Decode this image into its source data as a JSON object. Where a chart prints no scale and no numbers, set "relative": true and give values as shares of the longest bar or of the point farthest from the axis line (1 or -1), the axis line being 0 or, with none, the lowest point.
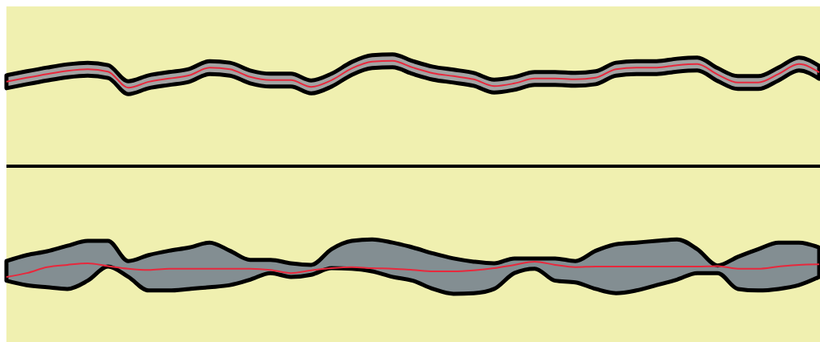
{
  "chart_data": [
    {
      "type": "line",
      "relative": true,
      "categories": [
        null,
        null,
        null,
        null,
        null,
        null,
        null,
        null,
        null,
        null,
        null,
        null,
        null,
        null,
        null,
        null,
        null,
        null,
        null,
        null,
        null,
        null,
        null,
        null,
        null,
        null,
        null,
        null,
        null,
        null,
        null,
        null,
        null,
        null,
        null,
        null,
        null,
        null,
        null,
        null,
        null
      ],
      "series": [
        {
          "color": "#e8283c",
          "values": [
            0.22,
            0.37,
            0.51,
            0.63,
            0.69,
            0.6,
            0,
            0.22,
            0.34,
            0.46,
            0.75,
            0.69,
            0.4,
            0.28,
            0.28,
            0.03,
            0.28,
            0.72,
            0.97,
            1,
            0.75,
            0.54,
            0.43,
            0.31,
            0.06,
            0.16,
            0.34,
            0.34,
            0.31,
            0.37,
            0.69,
            0.75,
            0.75,
            0.84,
            0.88,
            0.49,
            0.19,
            0.19,
            0.51,
            0.88,
            0.57
          ],
          "lower": [
            -0.02,
            0.13,
            0.27,
            0.39,
            0.45,
            0.36,
            -0.24,
            -0.02,
            0.1,
            0.22,
            0.51,
            0.45,
            0.16,
            0.04,
            0.04,
            -0.21,
            0.04,
            0.48,
            0.73,
            0.76,
            0.51,
            0.3,
            0.19,
            0.07,
            -0.18,
            -0.08,
            0.1,
            0.1,
            0.07,
            0.13,
            0.45,
            0.51,
            0.51,
            0.6,
            0.64,
            0.25,
            -0.05,
            -0.05,
            0.27,
            0.64,
            0.33
          ],
          "upper": [
            0.46,
            0.61,
            0.75,
            0.87,
            0.93,
            0.84,
            0.24,
            0.46,
            0.58,
            0.7,
            0.99,
            0.93,
            0.64,
            0.52,
            0.52,
            0.27,
            0.52,
            0.96,
            1.21,
            1.24,
            0.99,
            0.78,
            0.67,
            0.55,
            0.3,
            0.4,
            0.58,
            0.58,
            0.55,
            0.61,
            0.93,
            0.99,
            0.99,
            1.08,
            1.12,
            0.73,
            0.43,
            0.43,
            0.75,
            1.12,
            0.81
          ]
        }
      ]
    },
    {
      "type": "line",
      "relative": true,
      "categories": [
        null,
        null,
        null,
        null,
        null,
        null,
        null,
        null,
        null,
        null,
        null,
        null,
        null,
        null,
        null,
        null,
        null,
        null,
        null,
        null,
        null,
        null,
        null,
        null,
        null,
        null,
        null,
        null,
        null,
        null,
        null,
        null,
        null,
        null,
        null,
        null,
        null,
        null,
        null,
        null,
        null
      ],
      "series": [
        {
          "color": "#e8283c",
          "values": [
            0,
            0.25,
            0.64,
            0.79,
            0.89,
            0.71,
            0.54,
            0.46,
            0.54,
            0.54,
            0.54,
            0.54,
            0.54,
            0.46,
            0.25,
            0.43,
            0.57,
            0.64,
            0.57,
            0.54,
            0.46,
            0.36,
            0.36,
            0.43,
            0.57,
            0.79,
            1,
            0.79,
            0.64,
            0.68,
            0.68,
            0.68,
            0.68,
            0.68,
            0.68,
            0.71,
            0.54,
            0.54,
            0.68,
            0.79,
            0.82
          ],
          "lower": [
            -0.25,
            -0.54,
            -0.68,
            -0.79,
            -0.25,
            0.68,
            0,
            -0.89,
            -0.89,
            -0.79,
            -0.68,
            -0.54,
            -0.18,
            0.25,
            0,
            0.14,
            0.57,
            0.54,
            0.36,
            0,
            -0.25,
            -0.79,
            -1.11,
            -1.07,
            -0.79,
            0.25,
            0.54,
            -0.25,
            -0.36,
            -0.79,
            -1.07,
            -0.89,
            -0.54,
            -0.18,
            0.25,
            0.25,
            -0.79,
            -0.89,
            -0.79,
            -0.54,
            0
          ],
          "upper": [
            1.04,
            1.43,
            1.68,
            2.04,
            2.36,
            2.36,
            1.04,
            1.43,
            1.71,
            1.93,
            2.25,
            1.71,
            1.11,
            1.11,
            0.89,
            0.79,
            1.82,
            2.36,
            2.46,
            2.25,
            1.93,
            1.54,
            1.21,
            1,
            0.89,
            1.21,
            1.21,
            1.21,
            1.04,
            1.71,
            2.14,
            2.25,
            2.36,
            2.46,
            1.82,
            0.75,
            1.32,
            1.82,
            2.25,
            2.25,
            1.93
          ]
        }
      ]
    }
  ]
}
